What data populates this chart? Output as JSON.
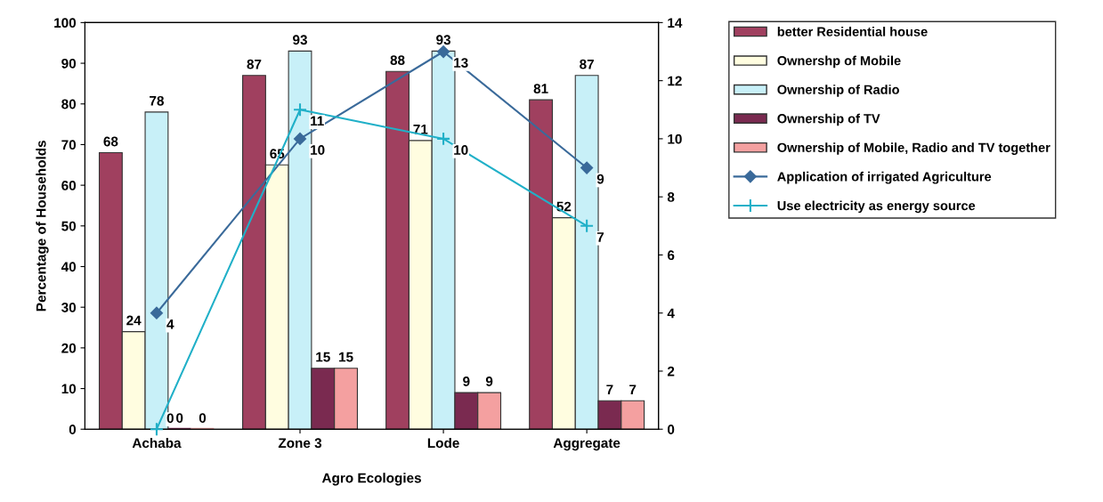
{
  "chart_data": {
    "type": "bar",
    "xlabel": "Agro Ecologies",
    "ylabel": "Percentage of Households",
    "categories": [
      "Achaba",
      "Zone 3",
      "Lode",
      "Aggregate"
    ],
    "series": [
      {
        "name": "better Residential house",
        "color": "#a0405f",
        "values": [
          68,
          87,
          88,
          81
        ]
      },
      {
        "name": "Ownershp of Mobile",
        "color": "#fffde0",
        "values": [
          24,
          65,
          71,
          52
        ]
      },
      {
        "name": "Ownership of Radio",
        "color": "#c8f0f8",
        "values": [
          78,
          93,
          93,
          87
        ]
      },
      {
        "name": "Ownership of TV",
        "color": "#7a2a50",
        "values": [
          0,
          15,
          9,
          7
        ]
      },
      {
        "name": "Ownership of Mobile, Radio and TV together",
        "color": "#f4a0a0",
        "values": [
          0,
          15,
          9,
          7
        ]
      },
      {
        "name": "Application of irrigated Agriculture",
        "type": "line",
        "axis": "y2",
        "marker": "diamond",
        "color": "#3a6a9a",
        "values": [
          4,
          10,
          13,
          9
        ]
      },
      {
        "name": "Use electricity as energy source",
        "type": "line",
        "axis": "y2",
        "marker": "cross",
        "color": "#20b0c8",
        "values": [
          0,
          11,
          10,
          7
        ]
      }
    ],
    "ylim": [
      0,
      100
    ],
    "yticks": [
      0,
      10,
      20,
      30,
      40,
      50,
      60,
      70,
      80,
      90,
      100
    ],
    "y2lim": [
      0,
      14
    ],
    "y2ticks": [
      0,
      2,
      4,
      6,
      8,
      10,
      12,
      14
    ],
    "data_labels": true,
    "grid": false,
    "legend": "right"
  }
}
